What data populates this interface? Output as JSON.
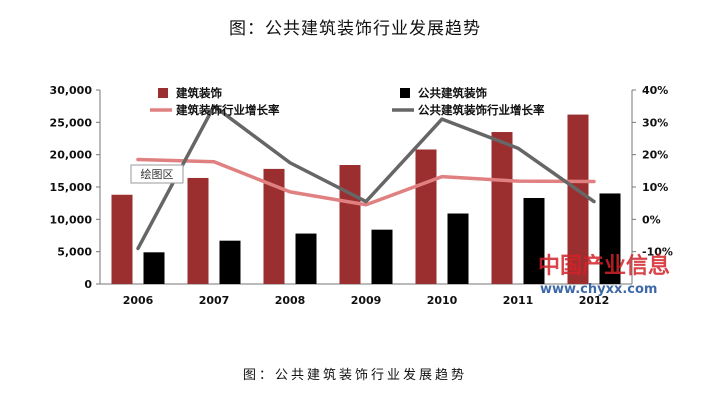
{
  "title": "图：公共建筑装饰行业发展趋势",
  "caption": "图：公共建筑装饰行业发展趋势",
  "callout_label": "绘图区",
  "watermark": {
    "name": "中国产业信息",
    "url": "www.chyxx.com"
  },
  "colors": {
    "bar1": "#9b2e2e",
    "bar2": "#000000",
    "line1": "#e08080",
    "line2": "#666666"
  },
  "chart_data": {
    "type": "bar+line",
    "categories": [
      "2006",
      "2007",
      "2008",
      "2009",
      "2010",
      "2011",
      "2012"
    ],
    "y_left": {
      "ticks": [
        "0",
        "5,000",
        "10,000",
        "15,000",
        "20,000",
        "25,000",
        "30,000"
      ],
      "lim": [
        0,
        30000
      ]
    },
    "y_right": {
      "ticks": [
        "-10%",
        "0%",
        "10%",
        "20%",
        "30%",
        "40%"
      ],
      "lim": [
        -20,
        40
      ]
    },
    "bar_series": [
      {
        "name": "建筑装饰",
        "values": [
          13800,
          16400,
          17800,
          18400,
          20800,
          23500,
          26200
        ]
      },
      {
        "name": "公共建筑装饰",
        "values": [
          4900,
          6700,
          7800,
          8400,
          10900,
          13300,
          14000
        ]
      }
    ],
    "line_series": [
      {
        "name": "建筑装饰行业增长率",
        "values": [
          18.5,
          17.8,
          8.5,
          4.5,
          13.2,
          11.8,
          11.7
        ]
      },
      {
        "name": "公共建筑装饰行业增长率",
        "values": [
          -9,
          35,
          17.5,
          5.5,
          31,
          22,
          5.5
        ]
      }
    ],
    "legend_position": "top",
    "grid": false
  }
}
